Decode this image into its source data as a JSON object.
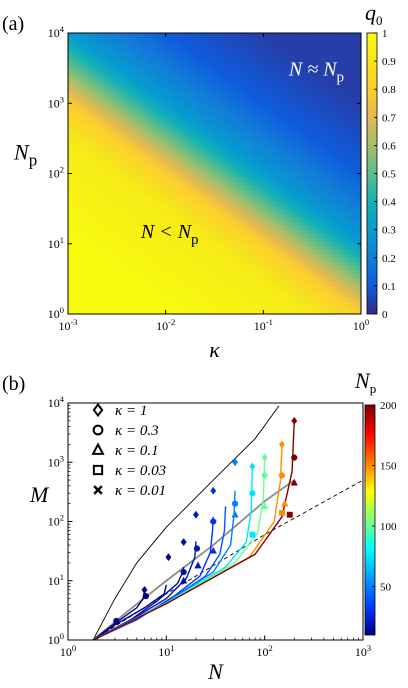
{
  "chart_data": [
    {
      "type": "heatmap",
      "panel_label": "(a)",
      "xlabel": "κ",
      "ylabel": "N",
      "ylabel_sub": "p",
      "x_scale": "log",
      "y_scale": "log",
      "xlim": [
        0.001,
        1
      ],
      "ylim": [
        1,
        10000
      ],
      "x_ticks": [
        {
          "base": "10",
          "exp": "-3",
          "value": 0.001
        },
        {
          "base": "10",
          "exp": "-2",
          "value": 0.01
        },
        {
          "base": "10",
          "exp": "-1",
          "value": 0.1
        },
        {
          "base": "10",
          "exp": "0",
          "value": 1
        }
      ],
      "y_ticks": [
        {
          "base": "10",
          "exp": "0",
          "value": 1
        },
        {
          "base": "10",
          "exp": "1",
          "value": 10
        },
        {
          "base": "10",
          "exp": "2",
          "value": 100
        },
        {
          "base": "10",
          "exp": "3",
          "value": 1000
        },
        {
          "base": "10",
          "exp": "4",
          "value": 10000
        }
      ],
      "colorbar": {
        "label": "q",
        "label_sub": "0",
        "range": [
          0,
          1
        ],
        "ticks": [
          "0",
          "0.1",
          "0.2",
          "0.3",
          "0.4",
          "0.5",
          "0.6",
          "0.7",
          "0.8",
          "0.9",
          "1"
        ],
        "colormap": "parula"
      },
      "annotations": [
        {
          "text_main": "N ≈ N",
          "text_sub": "p",
          "region": "upper-right",
          "x": 0.35,
          "y": 2500
        },
        {
          "text_main": "N < N",
          "text_sub": "p",
          "region": "lower-left",
          "x": 0.011,
          "y": 12
        }
      ],
      "surface": {
        "q0_at_kappa_times_Np": [
          {
            "kappa_Np": 0.01,
            "q0": 1.0
          },
          {
            "kappa_Np": 0.3,
            "q0": 0.92
          },
          {
            "kappa_Np": 1,
            "q0": 0.8
          },
          {
            "kappa_Np": 3,
            "q0": 0.55
          },
          {
            "kappa_Np": 10,
            "q0": 0.3
          },
          {
            "kappa_Np": 100,
            "q0": 0.1
          },
          {
            "kappa_Np": 1000,
            "q0": 0.04
          }
        ]
      }
    },
    {
      "type": "line",
      "panel_label": "(b)",
      "xlabel": "N",
      "ylabel": "M",
      "x_scale": "log",
      "y_scale": "log",
      "xlim": [
        1,
        1000
      ],
      "ylim": [
        1,
        10000
      ],
      "x_ticks": [
        {
          "base": "10",
          "exp": "0",
          "value": 1
        },
        {
          "base": "10",
          "exp": "1",
          "value": 10
        },
        {
          "base": "10",
          "exp": "2",
          "value": 100
        },
        {
          "base": "10",
          "exp": "3",
          "value": 1000
        }
      ],
      "y_ticks": [
        {
          "base": "10",
          "exp": "0",
          "value": 1
        },
        {
          "base": "10",
          "exp": "1",
          "value": 10
        },
        {
          "base": "10",
          "exp": "2",
          "value": 100
        },
        {
          "base": "10",
          "exp": "3",
          "value": 1000
        },
        {
          "base": "10",
          "exp": "4",
          "value": 10000
        }
      ],
      "legend": [
        {
          "marker": "diamond",
          "label": "κ = 1",
          "kappa": 1
        },
        {
          "marker": "circle",
          "label": "κ = 0.3",
          "kappa": 0.3
        },
        {
          "marker": "triangle",
          "label": "κ = 0.1",
          "kappa": 0.1
        },
        {
          "marker": "square",
          "label": "κ = 0.03",
          "kappa": 0.03
        },
        {
          "marker": "cross",
          "label": "κ = 0.01",
          "kappa": 0.01
        }
      ],
      "colorbar": {
        "label": "N",
        "label_sub": "p",
        "range": [
          10,
          200
        ],
        "ticks": [
          "50",
          "100",
          "150",
          "200"
        ],
        "colormap": "jet"
      },
      "reference_lines": [
        {
          "style": "solid",
          "color": "#000000",
          "points": [
            [
              1.8,
              1
            ],
            [
              3,
              5
            ],
            [
              5,
              20
            ],
            [
              10,
              80
            ],
            [
              30,
              500
            ],
            [
              80,
              2500
            ],
            [
              140,
              9000
            ]
          ]
        },
        {
          "style": "solid",
          "color": "#8c8c8c",
          "points": [
            [
              1.8,
              1
            ],
            [
              4,
              3
            ],
            [
              10,
              10
            ],
            [
              30,
              40
            ],
            [
              100,
              220
            ],
            [
              200,
              500
            ]
          ]
        },
        {
          "style": "dashed",
          "color": "#000000",
          "points": [
            [
              1.8,
              1
            ],
            [
              10,
              6
            ],
            [
              100,
              60
            ],
            [
              1000,
              500
            ]
          ]
        }
      ],
      "curves": [
        {
          "Np": 6,
          "points": [
            [
              1.8,
              1
            ],
            [
              3,
              1.9
            ],
            [
              5,
              3.5
            ],
            [
              5.8,
              5
            ],
            [
              6,
              7
            ]
          ]
        },
        {
          "Np": 10,
          "points": [
            [
              1.8,
              1
            ],
            [
              3,
              1.8
            ],
            [
              6,
              3.5
            ],
            [
              9.5,
              6
            ],
            [
              10,
              8.5
            ]
          ]
        },
        {
          "Np": 15,
          "points": [
            [
              1.8,
              1
            ],
            [
              4,
              2
            ],
            [
              8,
              4.5
            ],
            [
              13,
              9
            ],
            [
              14.7,
              14
            ],
            [
              15,
              17
            ]
          ]
        },
        {
          "Np": 20,
          "points": [
            [
              1.8,
              1
            ],
            [
              5,
              2.5
            ],
            [
              10,
              5
            ],
            [
              16,
              11
            ],
            [
              19.5,
              25
            ],
            [
              20,
              46
            ]
          ]
        },
        {
          "Np": 30,
          "points": [
            [
              1.8,
              1
            ],
            [
              5,
              2.2
            ],
            [
              12,
              5.5
            ],
            [
              22,
              12
            ],
            [
              28,
              30
            ],
            [
              29.5,
              70
            ],
            [
              30,
              120
            ]
          ]
        },
        {
          "Np": 40,
          "points": [
            [
              1.8,
              1
            ],
            [
              10,
              4.3
            ],
            [
              25,
              12
            ],
            [
              35,
              28
            ],
            [
              39,
              70
            ],
            [
              40,
              180
            ]
          ]
        },
        {
          "Np": 50,
          "points": [
            [
              1.8,
              1
            ],
            [
              10,
              4.3
            ],
            [
              30,
              14
            ],
            [
              45,
              40
            ],
            [
              49,
              140
            ],
            [
              50,
              330
            ]
          ]
        },
        {
          "Np": 75,
          "points": [
            [
              1.8,
              1
            ],
            [
              10,
              4.2
            ],
            [
              40,
              17
            ],
            [
              65,
              45
            ],
            [
              73,
              150
            ],
            [
              75,
              850
            ]
          ]
        },
        {
          "Np": 100,
          "points": [
            [
              1.8,
              1
            ],
            [
              10,
              4.1
            ],
            [
              50,
              20
            ],
            [
              85,
              65
            ],
            [
              97,
              250
            ],
            [
              100,
              1200
            ]
          ]
        },
        {
          "Np": 150,
          "points": [
            [
              1.8,
              1
            ],
            [
              10,
              4.1
            ],
            [
              70,
              25
            ],
            [
              125,
              100
            ],
            [
              145,
              500
            ],
            [
              150,
              2000
            ]
          ]
        },
        {
          "Np": 200,
          "points": [
            [
              1.8,
              1
            ],
            [
              10,
              4.1
            ],
            [
              80,
              28
            ],
            [
              150,
              120
            ],
            [
              190,
              700
            ],
            [
              200,
              5000
            ]
          ]
        }
      ],
      "markers": [
        {
          "Np": 6,
          "kappa": 1,
          "x": 6,
          "y": 7
        },
        {
          "Np": 6,
          "kappa": 0.3,
          "x": 6.2,
          "y": 5.5
        },
        {
          "Np": 3,
          "kappa": 0.3,
          "x": 3.1,
          "y": 2.1
        },
        {
          "Np": 10,
          "kappa": 1,
          "x": 10.5,
          "y": 25
        },
        {
          "Np": 15,
          "kappa": 1,
          "x": 15,
          "y": 45
        },
        {
          "Np": 15,
          "kappa": 0.3,
          "x": 15,
          "y": 14
        },
        {
          "Np": 15,
          "kappa": 0.1,
          "x": 15,
          "y": 10
        },
        {
          "Np": 20,
          "kappa": 1,
          "x": 20,
          "y": 130
        },
        {
          "Np": 20,
          "kappa": 0.3,
          "x": 20.5,
          "y": 35
        },
        {
          "Np": 20,
          "kappa": 0.1,
          "x": 21,
          "y": 18
        },
        {
          "Np": 30,
          "kappa": 1,
          "x": 30,
          "y": 330
        },
        {
          "Np": 30,
          "kappa": 0.3,
          "x": 30,
          "y": 100
        },
        {
          "Np": 30,
          "kappa": 0.1,
          "x": 30,
          "y": 32
        },
        {
          "Np": 50,
          "kappa": 1,
          "x": 50,
          "y": 1000
        },
        {
          "Np": 50,
          "kappa": 0.3,
          "x": 50,
          "y": 200
        },
        {
          "Np": 50,
          "kappa": 0.1,
          "x": 50,
          "y": 130
        },
        {
          "Np": 75,
          "kappa": 1,
          "x": 75,
          "y": 850
        },
        {
          "Np": 75,
          "kappa": 0.3,
          "x": 75,
          "y": 300
        },
        {
          "Np": 75,
          "kappa": 0.03,
          "x": 75,
          "y": 60
        },
        {
          "Np": 100,
          "kappa": 1,
          "x": 100,
          "y": 1200
        },
        {
          "Np": 100,
          "kappa": 0.3,
          "x": 100,
          "y": 600
        },
        {
          "Np": 100,
          "kappa": 0.1,
          "x": 100,
          "y": 180
        },
        {
          "Np": 150,
          "kappa": 1,
          "x": 150,
          "y": 2000
        },
        {
          "Np": 150,
          "kappa": 0.3,
          "x": 150,
          "y": 600
        },
        {
          "Np": 150,
          "kappa": 0.1,
          "x": 160,
          "y": 200
        },
        {
          "Np": 150,
          "kappa": 0.03,
          "x": 150,
          "y": 140
        },
        {
          "Np": 200,
          "kappa": 1,
          "x": 200,
          "y": 5000
        },
        {
          "Np": 200,
          "kappa": 0.3,
          "x": 200,
          "y": 1200
        },
        {
          "Np": 200,
          "kappa": 0.1,
          "x": 200,
          "y": 450
        },
        {
          "Np": 200,
          "kappa": 0.03,
          "x": 180,
          "y": 130
        }
      ]
    }
  ]
}
